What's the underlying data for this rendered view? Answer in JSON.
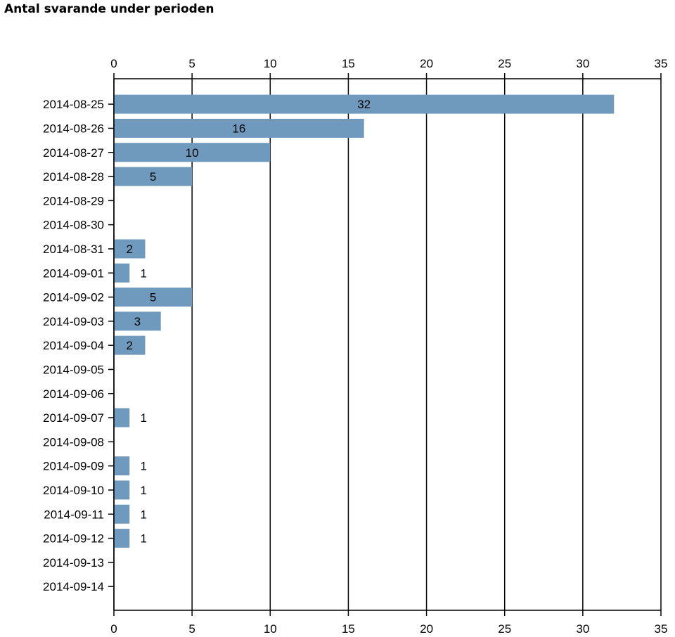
{
  "title": "Antal svarande under perioden",
  "chart_data": {
    "type": "bar",
    "orientation": "horizontal",
    "title": "Antal svarande under perioden",
    "categories": [
      "2014-08-25",
      "2014-08-26",
      "2014-08-27",
      "2014-08-28",
      "2014-08-29",
      "2014-08-30",
      "2014-08-31",
      "2014-09-01",
      "2014-09-02",
      "2014-09-03",
      "2014-09-04",
      "2014-09-05",
      "2014-09-06",
      "2014-09-07",
      "2014-09-08",
      "2014-09-09",
      "2014-09-10",
      "2014-09-11",
      "2014-09-12",
      "2014-09-13",
      "2014-09-14"
    ],
    "values": [
      32,
      16,
      10,
      5,
      0,
      0,
      2,
      1,
      5,
      3,
      2,
      0,
      0,
      1,
      0,
      1,
      1,
      1,
      1,
      0,
      0
    ],
    "xlim": [
      0,
      35
    ],
    "xticks": [
      0,
      5,
      10,
      15,
      20,
      25,
      30,
      35
    ],
    "xaxis_position": "top and bottom",
    "grid": true,
    "bar_color": "#6f9abd",
    "gridline_color": "#000000"
  }
}
